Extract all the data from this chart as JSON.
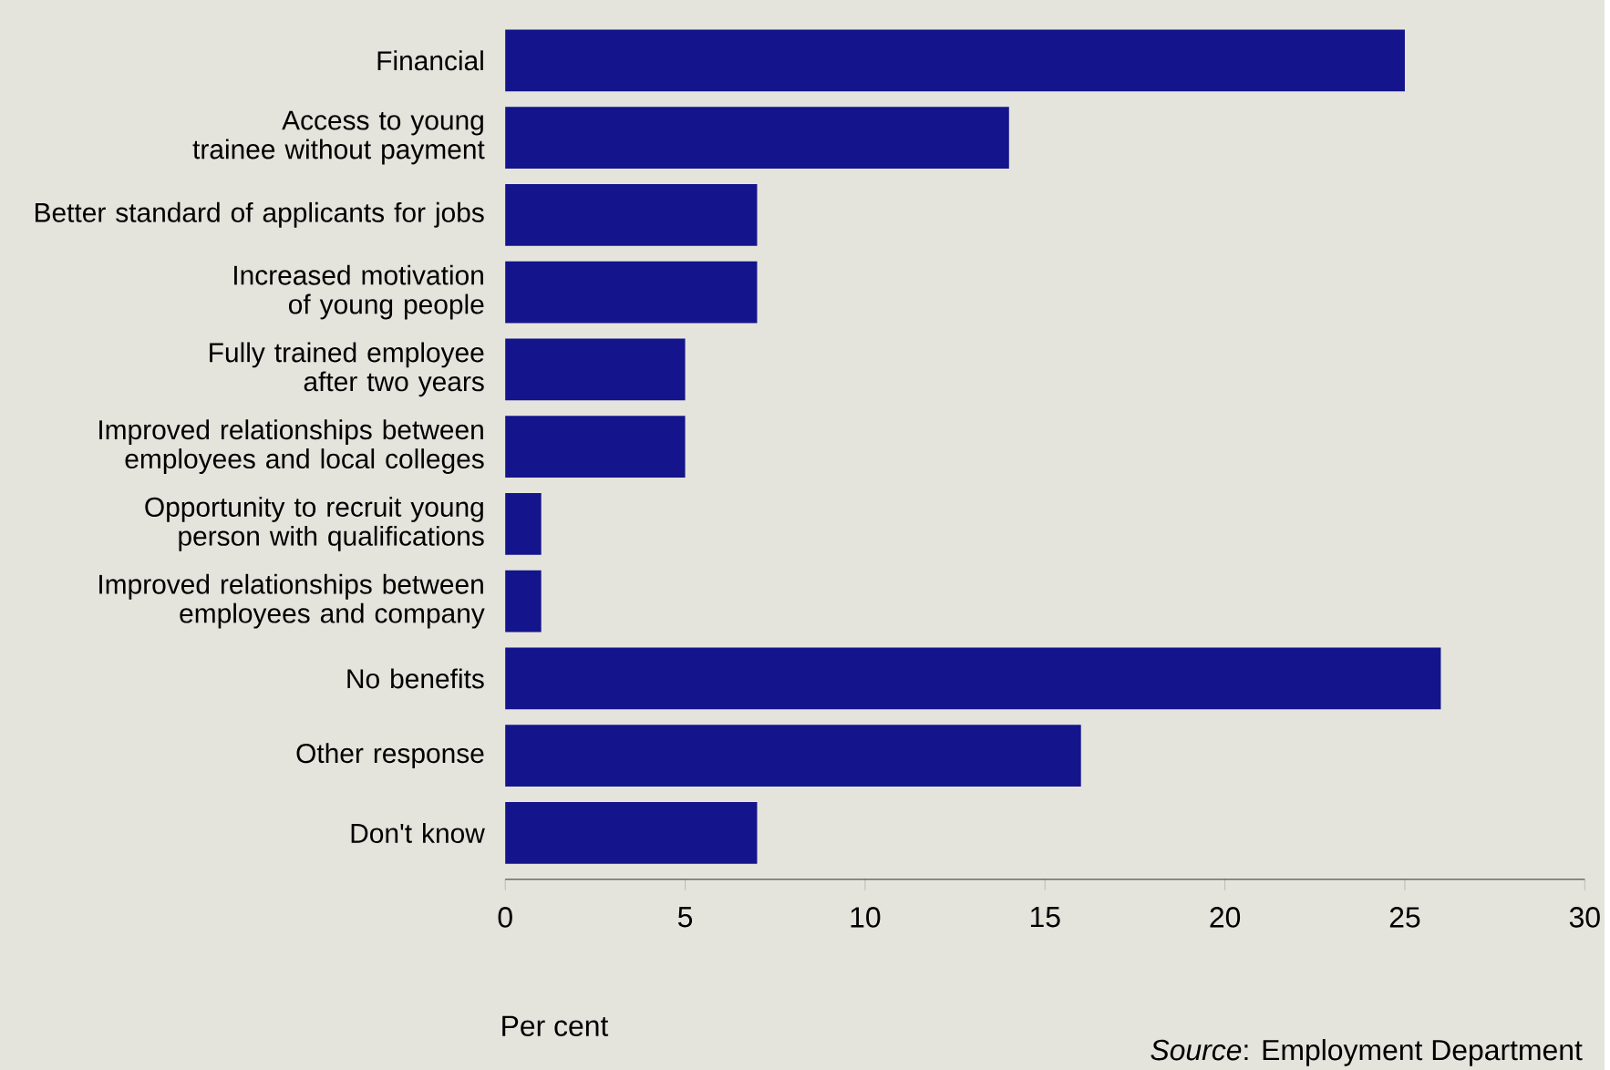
{
  "chart_data": {
    "type": "bar",
    "orientation": "horizontal",
    "categories": [
      "Financial",
      "Access to young trainee without payment",
      "Better standard of applicants for jobs",
      "Increased motivation of young people",
      "Fully trained employee after two years",
      "Improved relationships between employees and local colleges",
      "Opportunity to recruit young person with qualifications",
      "Improved relationships between employees and company",
      "No benefits",
      "Other response",
      "Don't know"
    ],
    "values": [
      25,
      14,
      7,
      7,
      5,
      5,
      1,
      1,
      26,
      16,
      7
    ],
    "color": "#14148c",
    "xlim": [
      0,
      30
    ],
    "xticks": [
      0,
      5,
      10,
      15,
      20,
      25,
      30
    ],
    "xlabel": "Per cent",
    "annotations": [
      "*Source*: Employment Department"
    ]
  }
}
